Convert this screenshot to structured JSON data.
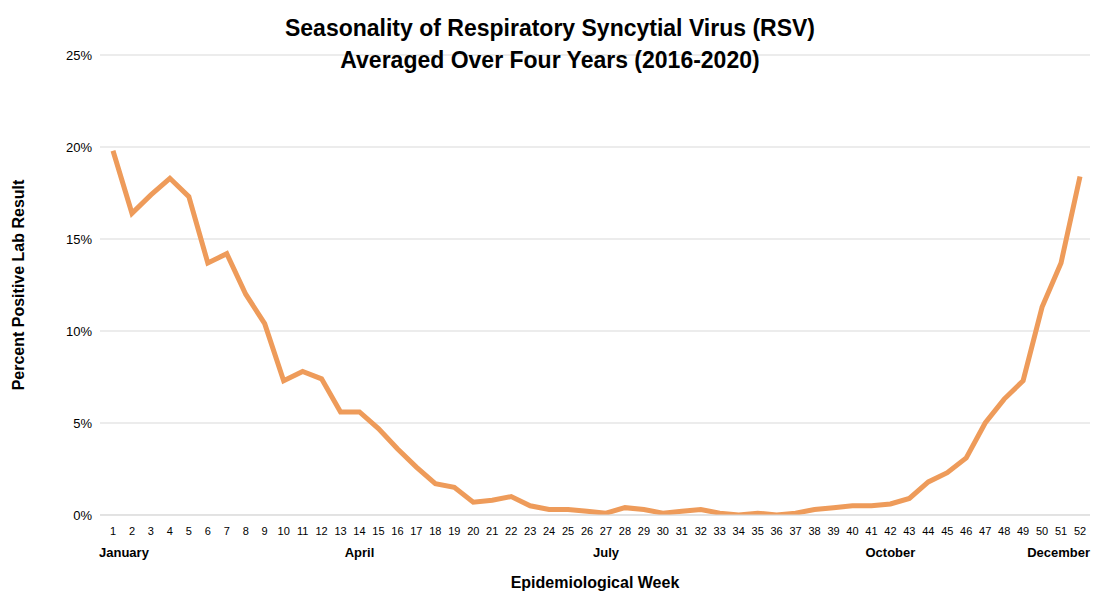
{
  "chart_data": {
    "type": "line",
    "title": "Seasonality of Respiratory Syncytial Virus (RSV)",
    "subtitle": "Averaged Over Four Years (2016-2020)",
    "x_label": "Epidemiological Week",
    "y_label": "Percent Positive Lab Result",
    "categories": [
      "1",
      "2",
      "3",
      "4",
      "5",
      "6",
      "7",
      "8",
      "9",
      "10",
      "11",
      "12",
      "13",
      "14",
      "15",
      "16",
      "17",
      "18",
      "19",
      "20",
      "21",
      "22",
      "23",
      "24",
      "25",
      "26",
      "27",
      "28",
      "29",
      "30",
      "31",
      "32",
      "33",
      "34",
      "35",
      "36",
      "37",
      "38",
      "39",
      "40",
      "41",
      "42",
      "43",
      "44",
      "45",
      "46",
      "47",
      "48",
      "49",
      "50",
      "51",
      "52"
    ],
    "values": [
      19.8,
      16.4,
      17.4,
      18.3,
      17.3,
      13.7,
      14.2,
      12.0,
      10.4,
      7.3,
      7.8,
      7.4,
      5.6,
      5.6,
      4.7,
      3.6,
      2.6,
      1.7,
      1.5,
      0.7,
      0.8,
      1.0,
      0.5,
      0.3,
      0.3,
      0.2,
      0.1,
      0.4,
      0.3,
      0.1,
      0.2,
      0.3,
      0.1,
      0.0,
      0.1,
      0.0,
      0.1,
      0.3,
      0.4,
      0.5,
      0.5,
      0.6,
      0.9,
      1.8,
      2.3,
      3.1,
      5.0,
      6.3,
      7.3,
      11.3,
      13.7,
      18.4
    ],
    "month_labels": [
      {
        "category": "1",
        "label": "January"
      },
      {
        "category": "14",
        "label": "April"
      },
      {
        "category": "27",
        "label": "July"
      },
      {
        "category": "42",
        "label": "October"
      },
      {
        "category": "52",
        "label": "December"
      }
    ],
    "color": "#ee9b5a",
    "ylim": [
      0,
      25
    ],
    "yticks": [
      {
        "value": 0,
        "label": "0%"
      },
      {
        "value": 5,
        "label": "5%"
      },
      {
        "value": 10,
        "label": "10%"
      },
      {
        "value": 15,
        "label": "15%"
      },
      {
        "value": 20,
        "label": "20%"
      },
      {
        "value": 25,
        "label": "25%"
      }
    ],
    "grid": true,
    "marker": "none",
    "line_style": "solid"
  }
}
